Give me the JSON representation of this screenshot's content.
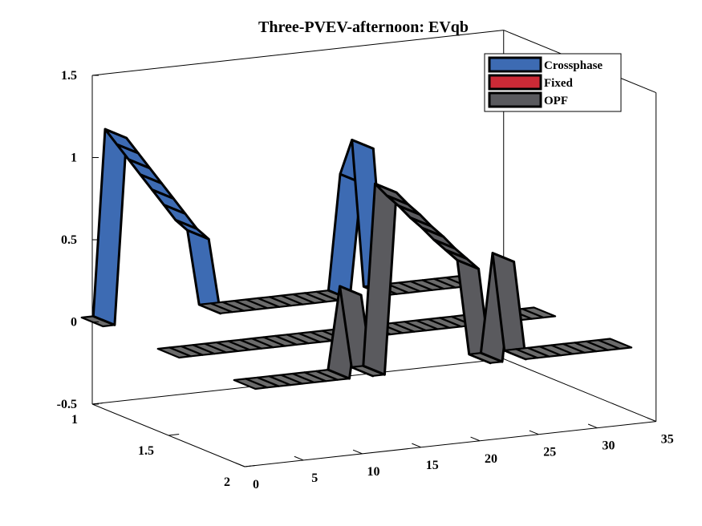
{
  "chart_data": {
    "type": "area",
    "title": "Three-PVEV-afternoon: EVqb",
    "x_ticks": [
      0,
      5,
      10,
      15,
      20,
      25,
      30,
      35
    ],
    "y_ticks": [
      1,
      1.5,
      2
    ],
    "z_ticks": [
      1.5,
      1,
      0.5,
      0,
      -0.5
    ],
    "xlim": [
      0,
      35
    ],
    "ylim": [
      1,
      2
    ],
    "zlim": [
      -0.5,
      1.5
    ],
    "legend_position": "top-right",
    "series": [
      {
        "name": "Crossphase",
        "color": "#3d6bb3",
        "y": 1,
        "x": [
          0,
          1,
          2,
          3,
          4,
          5,
          6,
          7,
          8,
          9,
          10,
          11,
          12,
          13,
          14,
          15,
          16,
          17,
          18,
          19,
          20,
          21,
          22,
          23,
          24,
          25,
          26,
          27,
          28,
          29,
          30,
          31,
          32
        ],
        "z": [
          0,
          0,
          1.13,
          1.03,
          0.93,
          0.83,
          0.73,
          0.63,
          0.53,
          0.46,
          0,
          0,
          0,
          0,
          0,
          0,
          0,
          0,
          0,
          0,
          0,
          0,
          0.7,
          0.9,
          0,
          0,
          0,
          0,
          0,
          0,
          0,
          0,
          0
        ]
      },
      {
        "name": "Fixed",
        "color": "#cc2a36",
        "y": 1.5,
        "x": [
          0,
          1,
          2,
          3,
          4,
          5,
          6,
          7,
          8,
          9,
          10,
          11,
          12,
          13,
          14,
          15,
          16,
          17,
          18,
          19,
          20,
          21,
          22,
          23,
          24,
          25,
          26,
          27,
          28,
          29,
          30,
          31,
          32
        ],
        "z": [
          0,
          0,
          0,
          0,
          0,
          0,
          0,
          0,
          0,
          0,
          0,
          0,
          0,
          0,
          0,
          0,
          0,
          0,
          0,
          0,
          0,
          0,
          0,
          0,
          0,
          0,
          0,
          0,
          0,
          0,
          0,
          0,
          0
        ]
      },
      {
        "name": "OPF",
        "color": "#5a5a5e",
        "y": 2,
        "x": [
          0,
          1,
          2,
          3,
          4,
          5,
          6,
          7,
          8,
          9,
          10,
          11,
          12,
          13,
          14,
          15,
          16,
          17,
          18,
          19,
          20,
          21,
          22,
          23,
          24,
          25,
          26,
          27,
          28,
          29,
          30,
          31,
          32
        ],
        "z": [
          0,
          0,
          0,
          0,
          0,
          0,
          0,
          0,
          0,
          0.5,
          0,
          0,
          1.1,
          1.02,
          0.95,
          0.87,
          0.8,
          0.72,
          0.65,
          0.58,
          0,
          0,
          0.6,
          0,
          0,
          0,
          0,
          0,
          0,
          0,
          0,
          0,
          0
        ]
      }
    ]
  }
}
